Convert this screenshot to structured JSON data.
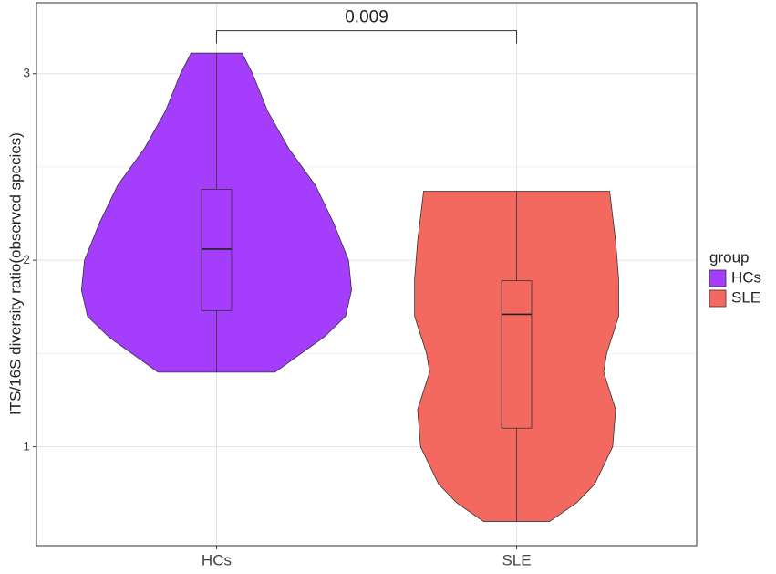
{
  "chart_data": {
    "type": "violin",
    "y_label": "ITS/16S diversity ratio(observed species)",
    "categories": [
      "HCs",
      "SLE"
    ],
    "legend_title": "group",
    "ylim": [
      0.47,
      3.38
    ],
    "yticks": [
      1,
      2,
      3
    ],
    "yminor": [
      1.5,
      2.5
    ],
    "grid": true,
    "series": [
      {
        "name": "HCs",
        "color": "#a53dfc",
        "min": 1.4,
        "q1": 1.73,
        "median": 2.06,
        "q3": 2.38,
        "max": 3.11,
        "density_y": [
          1.4,
          1.59,
          1.7,
          1.84,
          2.0,
          2.2,
          2.4,
          2.6,
          2.8,
          3.0,
          3.11
        ],
        "density_width": [
          0.195,
          0.36,
          0.43,
          0.45,
          0.44,
          0.39,
          0.33,
          0.24,
          0.17,
          0.12,
          0.085
        ]
      },
      {
        "name": "SLE",
        "color": "#f3695f",
        "min": 0.6,
        "q1": 1.1,
        "median": 1.71,
        "q3": 1.89,
        "max": 2.37,
        "density_y": [
          0.6,
          0.7,
          0.8,
          1.0,
          1.2,
          1.4,
          1.5,
          1.7,
          1.9,
          2.1,
          2.37
        ],
        "density_width": [
          0.11,
          0.2,
          0.26,
          0.32,
          0.33,
          0.29,
          0.3,
          0.34,
          0.34,
          0.33,
          0.31
        ]
      }
    ],
    "annotation": {
      "label": "0.009",
      "y": 3.23
    }
  }
}
